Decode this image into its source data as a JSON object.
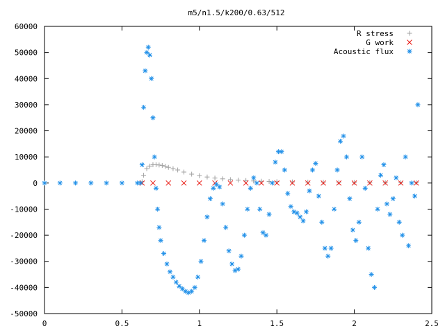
{
  "chart_data": {
    "type": "scatter",
    "title": "m5/n1.5/k200/0.63/512",
    "xlabel": "",
    "ylabel": "",
    "xlim": [
      0,
      2.5
    ],
    "ylim": [
      -50000,
      60000
    ],
    "xticks": [
      0,
      0.5,
      1,
      1.5,
      2,
      2.5
    ],
    "xtick_labels": [
      "0",
      "0.5",
      "1",
      "1.5",
      "2",
      "2.5"
    ],
    "yticks": [
      -50000,
      -40000,
      -30000,
      -20000,
      -10000,
      0,
      10000,
      20000,
      30000,
      40000,
      50000,
      60000
    ],
    "ytick_labels": [
      "-50000",
      "-40000",
      "-30000",
      "-20000",
      "-10000",
      "0",
      "10000",
      "20000",
      "30000",
      "40000",
      "50000",
      "60000"
    ],
    "grid": false,
    "legend_position": "top-right",
    "series": [
      {
        "name": "R stress",
        "marker": "+",
        "color": "#a0a0a0",
        "x": [
          0.63,
          0.64,
          0.66,
          0.68,
          0.7,
          0.72,
          0.74,
          0.76,
          0.78,
          0.8,
          0.83,
          0.86,
          0.9,
          0.95,
          1.0,
          1.05,
          1.1,
          1.15,
          1.2,
          1.25,
          1.3,
          1.35,
          1.4,
          1.45,
          1.5,
          1.6,
          1.7,
          1.8,
          1.9,
          2.0,
          2.1,
          2.2,
          2.3,
          2.4
        ],
        "values": [
          500,
          3000,
          5500,
          6500,
          7000,
          7000,
          6900,
          6700,
          6400,
          6000,
          5500,
          5000,
          4200,
          3400,
          2800,
          2300,
          1900,
          1600,
          1300,
          1100,
          950,
          800,
          700,
          600,
          520,
          420,
          340,
          280,
          230,
          190,
          160,
          130,
          110,
          90
        ]
      },
      {
        "name": "G work",
        "marker": "x",
        "color": "#e8150e",
        "x": [
          0.63,
          0.7,
          0.8,
          0.9,
          1.0,
          1.1,
          1.2,
          1.3,
          1.4,
          1.5,
          1.6,
          1.7,
          1.8,
          1.9,
          2.0,
          2.1,
          2.2,
          2.3,
          2.4
        ],
        "values": [
          0,
          0,
          0,
          0,
          0,
          0,
          0,
          0,
          0,
          0,
          0,
          0,
          0,
          0,
          0,
          0,
          0,
          0,
          0
        ]
      },
      {
        "name": "Acoustic flux",
        "marker": "*",
        "color": "#1f8fe8",
        "x": [
          0.0,
          0.1,
          0.2,
          0.3,
          0.4,
          0.5,
          0.6,
          0.62,
          0.63,
          0.64,
          0.65,
          0.66,
          0.67,
          0.68,
          0.69,
          0.7,
          0.71,
          0.72,
          0.73,
          0.74,
          0.75,
          0.77,
          0.79,
          0.81,
          0.83,
          0.85,
          0.87,
          0.89,
          0.91,
          0.93,
          0.95,
          0.97,
          0.99,
          1.01,
          1.03,
          1.05,
          1.07,
          1.09,
          1.11,
          1.13,
          1.15,
          1.17,
          1.19,
          1.21,
          1.23,
          1.25,
          1.27,
          1.29,
          1.31,
          1.33,
          1.35,
          1.37,
          1.39,
          1.41,
          1.43,
          1.45,
          1.47,
          1.49,
          1.51,
          1.53,
          1.55,
          1.57,
          1.59,
          1.61,
          1.63,
          1.65,
          1.67,
          1.69,
          1.71,
          1.73,
          1.75,
          1.77,
          1.79,
          1.81,
          1.83,
          1.85,
          1.87,
          1.89,
          1.91,
          1.93,
          1.95,
          1.97,
          1.99,
          2.01,
          2.03,
          2.05,
          2.07,
          2.09,
          2.11,
          2.13,
          2.15,
          2.17,
          2.19,
          2.21,
          2.23,
          2.25,
          2.27,
          2.29,
          2.31,
          2.33,
          2.35,
          2.37,
          2.39,
          2.41
        ],
        "values": [
          0,
          0,
          0,
          0,
          0,
          0,
          0,
          0,
          7000,
          29000,
          43000,
          50000,
          52000,
          49000,
          40000,
          25000,
          10000,
          -2000,
          -10000,
          -17000,
          -22000,
          -27000,
          -31000,
          -34000,
          -36000,
          -38000,
          -39500,
          -40500,
          -41500,
          -42000,
          -41500,
          -40000,
          -36000,
          -30000,
          -22000,
          -13000,
          -6000,
          -2000,
          -500,
          -1500,
          -8000,
          -17000,
          -26000,
          -31000,
          -33500,
          -33000,
          -28000,
          -20000,
          -10000,
          -2000,
          2000,
          0,
          -10000,
          -19000,
          -20000,
          -12000,
          0,
          8000,
          12000,
          12000,
          5000,
          -4000,
          -9000,
          -11000,
          -11500,
          -13000,
          -14500,
          -11000,
          -3000,
          5000,
          7500,
          -5000,
          -15000,
          -25000,
          -28000,
          -25000,
          -10000,
          5000,
          16000,
          18000,
          10000,
          -6000,
          -18000,
          -22000,
          -15000,
          10000,
          -2000,
          -25000,
          -35000,
          -40000,
          -10000,
          3000,
          7000,
          -8000,
          -12000,
          -6000,
          2000,
          -15000,
          -20000,
          10000,
          -24000,
          0,
          -5000,
          30000
        ]
      }
    ]
  }
}
